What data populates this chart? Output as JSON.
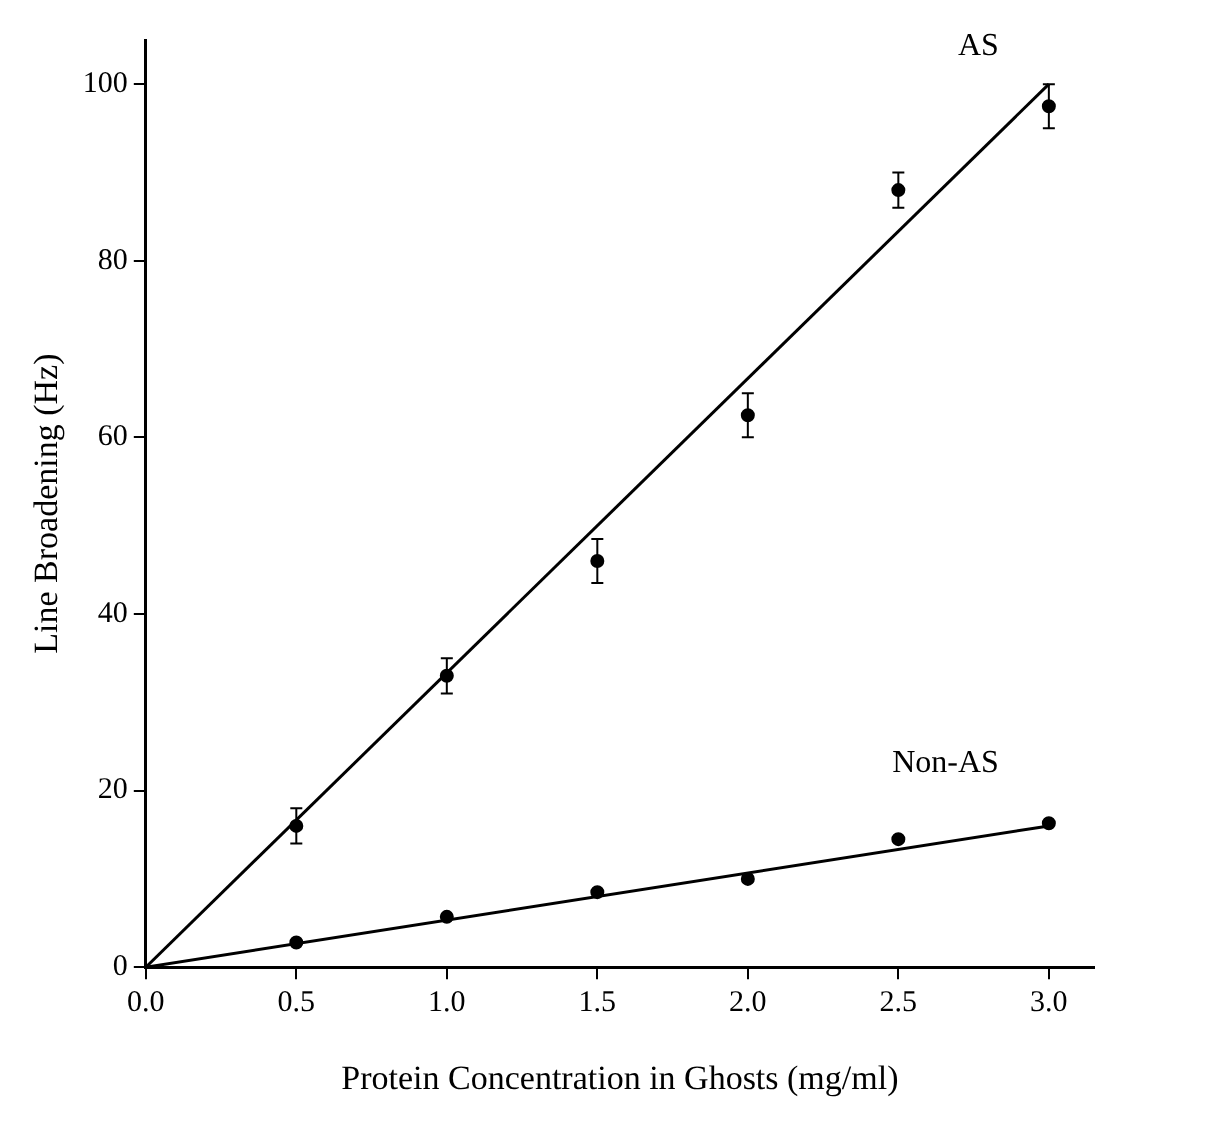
{
  "chart_data": {
    "type": "scatter",
    "xlabel": "Protein Concentration in Ghosts (mg/ml)",
    "ylabel": "Line Broadening (Hz)",
    "xlim": [
      0,
      3.15
    ],
    "ylim": [
      0,
      105
    ],
    "xticks": [
      {
        "value": 0,
        "label": "0.0"
      },
      {
        "value": 0.5,
        "label": "0.5"
      },
      {
        "value": 1,
        "label": "1.0"
      },
      {
        "value": 1.5,
        "label": "1.5"
      },
      {
        "value": 2,
        "label": "2.0"
      },
      {
        "value": 2.5,
        "label": "2.5"
      },
      {
        "value": 3,
        "label": "3.0"
      }
    ],
    "yticks": [
      0,
      20,
      40,
      60,
      80,
      100
    ],
    "grid": false,
    "legend": false,
    "series": [
      {
        "name": "AS",
        "color": "#000000",
        "x": [
          0.5,
          1,
          1.5,
          2,
          2.5,
          3
        ],
        "values": [
          16,
          33,
          46,
          62.5,
          88,
          97.5
        ],
        "errors": [
          2,
          2,
          2.5,
          2.5,
          2,
          2.5
        ],
        "marker": "circle"
      },
      {
        "name": "Non-AS",
        "color": "#000000",
        "x": [
          0.5,
          1,
          1.5,
          2,
          2.5,
          3
        ],
        "values": [
          2.8,
          5.7,
          8.5,
          10,
          14.5,
          16.3
        ],
        "marker": "circle"
      },
      {
        "type": "line",
        "color": "#000000",
        "x": [
          0,
          3
        ],
        "values": [
          0,
          100
        ]
      },
      {
        "type": "line",
        "color": "#000000",
        "x": [
          0,
          3
        ],
        "values": [
          0,
          16
        ]
      }
    ]
  }
}
